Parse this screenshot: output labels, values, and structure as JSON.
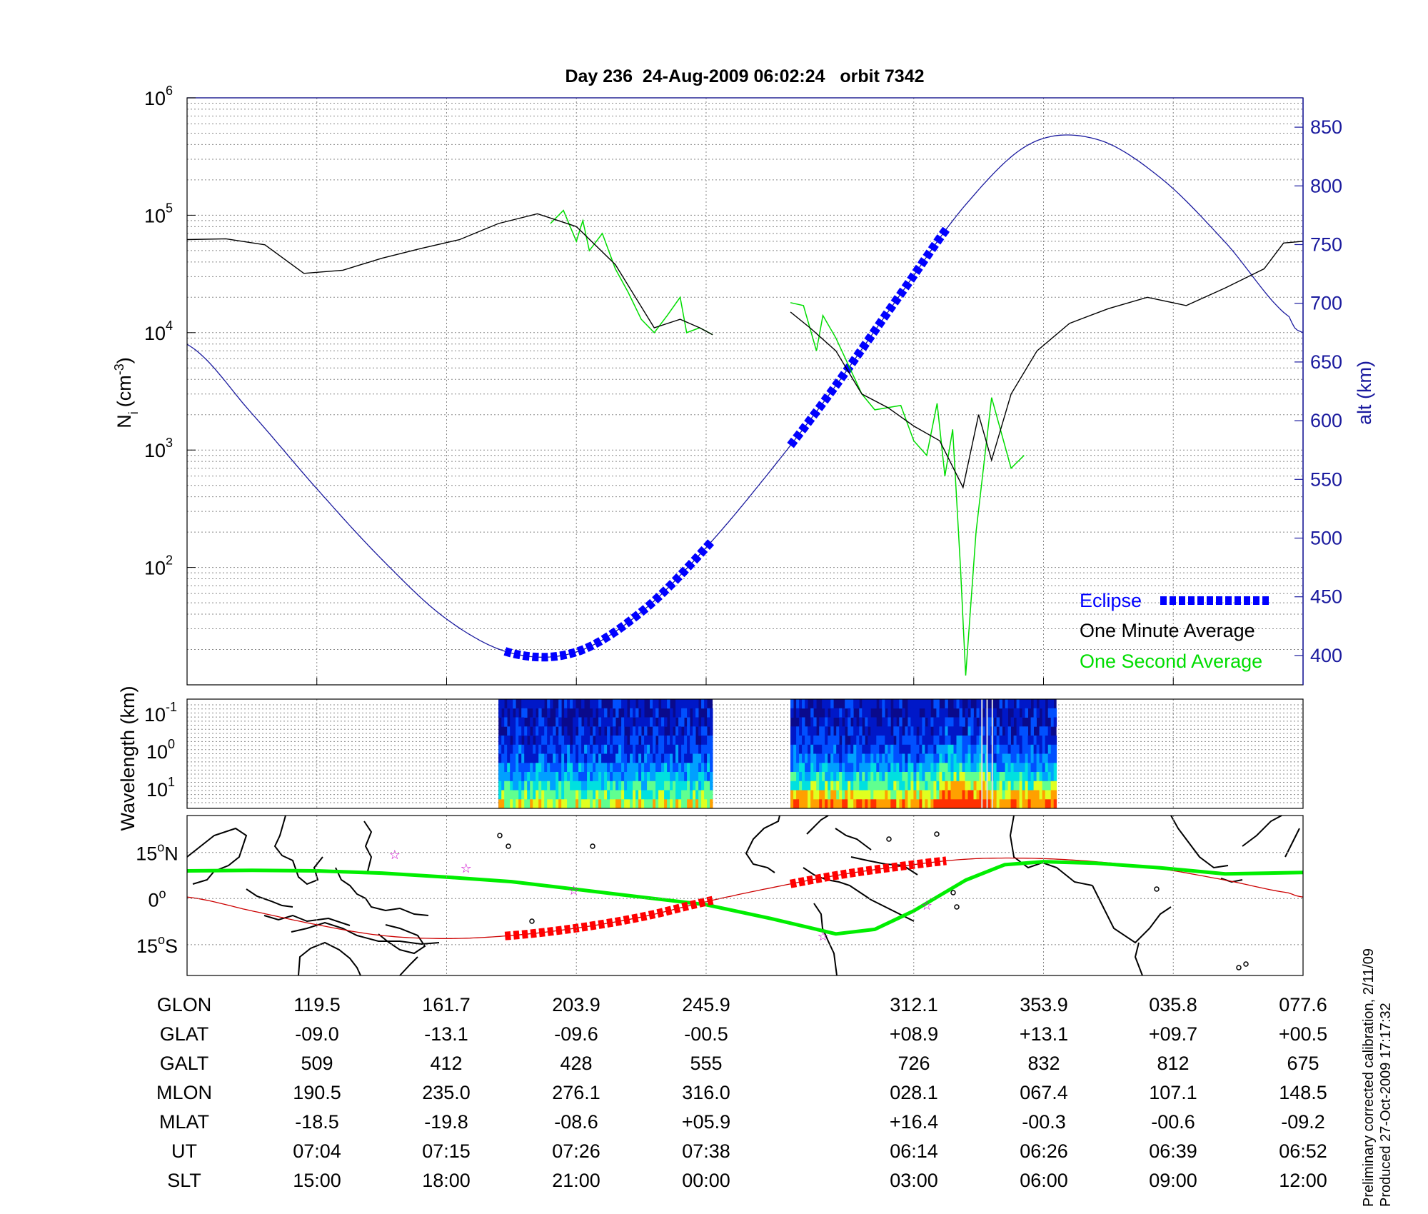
{
  "title": "Day 236  24-Aug-2009 06:02:24   orbit 7342",
  "colors": {
    "density_minute": "#000000",
    "density_second": "#00dd00",
    "altitude": "#1a1a9e",
    "eclipse": "#0000ff",
    "track": "#cc0000",
    "eclipse_track": "#ff0000",
    "magnetic_equator": "#00ee00",
    "coast": "#000000"
  },
  "chart_data": [
    {
      "type": "line",
      "panel": "density-altitude",
      "left_axis": {
        "label": "N",
        "label_sub": "i",
        "label_unit": "(cm",
        "label_unit_sup": "-3",
        "label_unit_end": ")",
        "scale": "log",
        "ylim": [
          10,
          1000000
        ],
        "ticks": [
          {
            "base": "10",
            "exp": "6",
            "value": 1000000
          },
          {
            "base": "10",
            "exp": "5",
            "value": 100000
          },
          {
            "base": "10",
            "exp": "4",
            "value": 10000
          },
          {
            "base": "10",
            "exp": "3",
            "value": 1000
          },
          {
            "base": "10",
            "exp": "2",
            "value": 100
          }
        ]
      },
      "right_axis": {
        "label": "alt (km)",
        "ylim": [
          375,
          875
        ],
        "ticks": [
          "850",
          "800",
          "750",
          "700",
          "650",
          "600",
          "550",
          "500",
          "450",
          "400"
        ]
      },
      "grid": true,
      "x_index_range": [
        0,
        8.6
      ],
      "altitude_km": {
        "x": [
          0,
          0.5,
          1,
          1.5,
          2,
          2.5,
          3,
          3.5,
          4,
          4.5,
          5,
          5.5,
          6,
          6.5,
          7,
          7.5,
          8,
          8.5,
          8.6
        ],
        "y": [
          665,
          606,
          542,
          482,
          431,
          402,
          403,
          437,
          492,
          558,
          630,
          708,
          784,
          836,
          840,
          807,
          752,
          688,
          675
        ]
      },
      "eclipse_segments": [
        {
          "x_start": 2.45,
          "x_end": 4.05
        },
        {
          "x_start": 4.65,
          "x_end": 5.85
        }
      ],
      "one_minute_average": [
        {
          "x": [
            0,
            0.3,
            0.6,
            0.9,
            1.2,
            1.5,
            1.8,
            2.1,
            2.4,
            2.7,
            3.0,
            3.3,
            3.6,
            3.8,
            3.95,
            4.05
          ],
          "y": [
            62000,
            63000,
            56000,
            32000,
            34000,
            43000,
            52000,
            62000,
            85000,
            103000,
            80000,
            38000,
            11000,
            13000,
            11000,
            9600
          ]
        },
        {
          "x": [
            4.65,
            4.8,
            5.0,
            5.2,
            5.4,
            5.6,
            5.8,
            5.98,
            6.1,
            6.2,
            6.35,
            6.55,
            6.8,
            7.1,
            7.4,
            7.7,
            8.0,
            8.3,
            8.45,
            8.6
          ],
          "y": [
            15000,
            11000,
            7000,
            3000,
            2300,
            1600,
            1200,
            480,
            2000,
            820,
            3000,
            7000,
            12000,
            16000,
            20000,
            17000,
            24000,
            35000,
            58000,
            60000
          ]
        }
      ],
      "one_second_average": [
        {
          "x": [
            2.8,
            2.9,
            3.0,
            3.05,
            3.1,
            3.2,
            3.3,
            3.4,
            3.5,
            3.6,
            3.7,
            3.8,
            3.85,
            3.95,
            4.05
          ],
          "y": [
            85000,
            110000,
            60000,
            90000,
            50000,
            70000,
            35000,
            22000,
            13000,
            10000,
            14000,
            20000,
            10000,
            11000,
            9600
          ]
        },
        {
          "x": [
            4.65,
            4.75,
            4.85,
            4.9,
            5.0,
            5.2,
            5.3,
            5.5,
            5.6,
            5.7,
            5.78,
            5.84,
            5.9,
            5.96,
            6.0,
            6.08,
            6.2,
            6.35,
            6.45
          ],
          "y": [
            18000,
            17000,
            7000,
            14000,
            9000,
            3000,
            2200,
            2400,
            1200,
            900,
            2500,
            600,
            1500,
            100,
            12,
            200,
            2800,
            700,
            900
          ]
        }
      ],
      "legend": {
        "position": "bottom-right",
        "entries": [
          "Eclipse",
          "One Minute Average",
          "One Second Average"
        ]
      }
    },
    {
      "type": "heatmap",
      "panel": "wavelength-spectrogram",
      "ylabel": "Wavelength (km)",
      "scale": "log",
      "ticks": [
        {
          "base": "10",
          "exp": "-1"
        },
        {
          "base": "10",
          "exp": "0"
        },
        {
          "base": "10",
          "exp": "1"
        }
      ],
      "blocks": [
        {
          "x_start": 2.4,
          "x_end": 4.05
        },
        {
          "x_start": 4.65,
          "x_end": 6.7
        }
      ]
    },
    {
      "type": "map",
      "panel": "ground-track",
      "lat_ticks": [
        {
          "num": "15",
          "unit": "N",
          "value": 15
        },
        {
          "num": "0",
          "unit": "",
          "value": 0
        },
        {
          "num": "15",
          "unit": "S",
          "value": -15
        }
      ],
      "lat_range": [
        -25,
        27
      ],
      "track_lat": {
        "x": [
          0,
          0.5,
          1,
          1.5,
          2,
          2.5,
          3,
          3.5,
          4,
          4.5,
          5,
          5.5,
          6,
          6.5,
          7,
          7.5,
          8,
          8.5,
          8.6
        ],
        "y": [
          0.5,
          -4,
          -8.5,
          -12,
          -13,
          -12,
          -9.6,
          -6,
          -1,
          3.5,
          7.5,
          10.5,
          12.8,
          13.1,
          12,
          9.7,
          6,
          1.8,
          0.5
        ]
      },
      "magnetic_equator_lat": {
        "x": [
          0,
          0.5,
          1,
          1.5,
          2,
          2.5,
          3,
          3.5,
          4,
          4.5,
          5,
          5.3,
          5.6,
          5.8,
          6,
          6.3,
          6.6,
          7,
          7.5,
          8,
          8.6
        ],
        "y": [
          9,
          9.2,
          9,
          8.3,
          7,
          5.5,
          3,
          0.5,
          -2,
          -6.5,
          -11.5,
          -10,
          -4,
          1,
          6,
          11,
          12,
          11.5,
          10,
          8,
          8.5
        ]
      },
      "markers": [
        {
          "x": 1.6,
          "lat": 14.5,
          "symbol": "☆"
        },
        {
          "x": 2.15,
          "lat": 10,
          "symbol": "☆"
        },
        {
          "x": 2.98,
          "lat": 2.8,
          "symbol": "☆"
        },
        {
          "x": 4.9,
          "lat": -12,
          "symbol": "☆"
        },
        {
          "x": 5.7,
          "lat": -2,
          "symbol": "☆"
        }
      ]
    },
    {
      "type": "table",
      "panel": "orbit-parameters",
      "rows": [
        {
          "label": "GLON",
          "values": [
            "119.5",
            "161.7",
            "203.9",
            "245.9",
            "312.1",
            "353.9",
            "035.8",
            "077.6"
          ]
        },
        {
          "label": "GLAT",
          "values": [
            "-09.0",
            "-13.1",
            "-09.6",
            "-00.5",
            "+08.9",
            "+13.1",
            "+09.7",
            "+00.5"
          ]
        },
        {
          "label": "GALT",
          "values": [
            "509",
            "412",
            "428",
            "555",
            "726",
            "832",
            "812",
            "675"
          ]
        },
        {
          "label": "MLON",
          "values": [
            "190.5",
            "235.0",
            "276.1",
            "316.0",
            "028.1",
            "067.4",
            "107.1",
            "148.5"
          ]
        },
        {
          "label": "MLAT",
          "values": [
            "-18.5",
            "-19.8",
            "-08.6",
            "+05.9",
            "+16.4",
            "-00.3",
            "-00.6",
            "-09.2"
          ]
        },
        {
          "label": "UT",
          "values": [
            "07:04",
            "07:15",
            "07:26",
            "07:38",
            "06:14",
            "06:26",
            "06:39",
            "06:52"
          ]
        },
        {
          "label": "SLT",
          "values": [
            "15:00",
            "18:00",
            "21:00",
            "00:00",
            "03:00",
            "06:00",
            "09:00",
            "12:00"
          ]
        }
      ]
    }
  ],
  "credit_lines": [
    "Preliminary corrected calibration, 2/11/09",
    "Produced 27-Oct-2009 17:17:32"
  ]
}
